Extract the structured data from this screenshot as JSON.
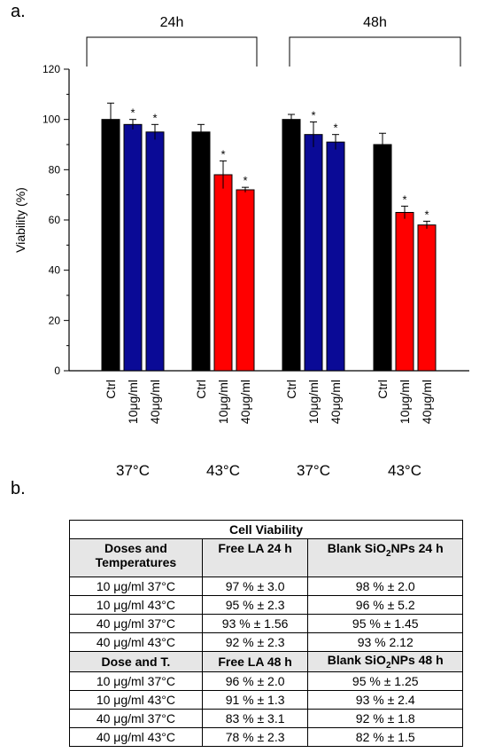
{
  "panel_a_label": "a.",
  "panel_b_label": "b.",
  "chart_data": {
    "type": "bar",
    "ylabel": "Viability (%)",
    "ylim": [
      0,
      120
    ],
    "yticks": [
      0,
      20,
      40,
      60,
      80,
      100,
      120
    ],
    "time_groups": [
      {
        "label": "24h"
      },
      {
        "label": "48h"
      }
    ],
    "temperature_labels": [
      "37°C",
      "43°C",
      "37°C",
      "43°C"
    ],
    "groups": [
      {
        "time": "24h",
        "temperature": "37°C",
        "categories": [
          "Ctrl",
          "10μg/ml",
          "40μg/ml"
        ],
        "values": [
          100,
          98,
          95
        ],
        "errors": [
          6.5,
          2.0,
          3.0
        ],
        "significant": [
          false,
          true,
          true
        ],
        "colors": [
          "#000000",
          "#0a0a96",
          "#0a0a96"
        ]
      },
      {
        "time": "24h",
        "temperature": "43°C",
        "categories": [
          "Ctrl",
          "10μg/ml",
          "40μg/ml"
        ],
        "values": [
          95,
          78,
          72
        ],
        "errors": [
          3.0,
          5.5,
          1.0
        ],
        "significant": [
          false,
          true,
          true
        ],
        "colors": [
          "#000000",
          "#ff0000",
          "#ff0000"
        ]
      },
      {
        "time": "48h",
        "temperature": "37°C",
        "categories": [
          "Ctrl",
          "10μg/ml",
          "40μg/ml"
        ],
        "values": [
          100,
          94,
          91
        ],
        "errors": [
          2.0,
          5.0,
          3.0
        ],
        "significant": [
          false,
          true,
          true
        ],
        "colors": [
          "#000000",
          "#0a0a96",
          "#0a0a96"
        ]
      },
      {
        "time": "48h",
        "temperature": "43°C",
        "categories": [
          "Ctrl",
          "10μg/ml",
          "40μg/ml"
        ],
        "values": [
          90,
          63,
          58
        ],
        "errors": [
          4.5,
          2.5,
          1.5
        ],
        "significant": [
          false,
          true,
          true
        ],
        "colors": [
          "#000000",
          "#ff0000",
          "#ff0000"
        ]
      }
    ],
    "significance_marker": "*",
    "grid": false
  },
  "table": {
    "title": "Cell Viability",
    "header1": [
      "Doses and Temperatures",
      "Free LA 24 h",
      "Blank SiO₂NPs 24 h"
    ],
    "rows1": [
      [
        "10 μg/ml 37°C",
        "97 % ± 3.0",
        "98 % ± 2.0"
      ],
      [
        "10 μg/ml 43°C",
        "95 % ± 2.3",
        "96 % ± 5.2"
      ],
      [
        "40 μg/ml 37°C",
        "93 % ± 1.56",
        "95 % ± 1.45"
      ],
      [
        "40 μg/ml 43°C",
        "92 % ± 2.3",
        "93 % 2.12"
      ]
    ],
    "header2": [
      "Dose and  T.",
      "Free LA 48 h",
      "Blank SiO₂NPs 48 h"
    ],
    "rows2": [
      [
        "10 μg/ml 37°C",
        "96 % ± 2.0",
        "95 % ± 1.25"
      ],
      [
        "10 μg/ml 43°C",
        "91 % ± 1.3",
        "93 % ± 2.4"
      ],
      [
        "40 μg/ml 37°C",
        "83 % ± 3.1",
        "92 % ± 1.8"
      ],
      [
        "40 μg/ml 43°C",
        "78 % ± 2.3",
        "82 % ± 1.5"
      ]
    ]
  }
}
